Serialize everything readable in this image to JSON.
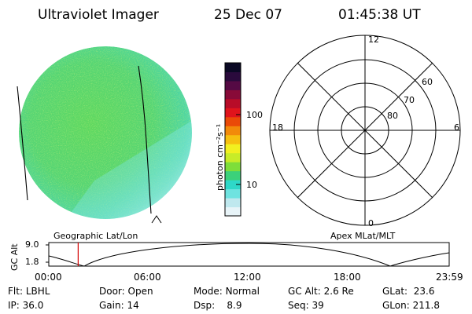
{
  "header": {
    "title": "Ultraviolet Imager",
    "date": "25 Dec 07",
    "time": "01:45:38 UT"
  },
  "colorbar": {
    "label": "photon cm⁻²s⁻¹",
    "tick_100": "100",
    "tick_10": "10",
    "colors": [
      "#e8f4f8",
      "#bfe8ee",
      "#6fe3e0",
      "#2ed8c8",
      "#3bd17a",
      "#7ede3a",
      "#c8ec28",
      "#f2f020",
      "#f6c010",
      "#f28a0a",
      "#ea4a08",
      "#e0141c",
      "#b80c28",
      "#880a38",
      "#550a44",
      "#2a0a3c",
      "#0a0824"
    ]
  },
  "polar": {
    "labels": {
      "top": "12",
      "bottom": "0",
      "left": "18",
      "right": "6"
    },
    "lat_labels": [
      "60",
      "70",
      "80"
    ]
  },
  "timeline": {
    "y_axis_label": "GC Alt",
    "y_ticks": [
      "9.0",
      "1.8"
    ],
    "left_label": "Geographic Lat/Lon",
    "right_label": "Apex  MLat/MLT",
    "x_ticks": [
      "00:00",
      "06:00",
      "12:00",
      "18:00",
      "23:59"
    ],
    "current_time_fraction": 0.0734
  },
  "info": {
    "row1": [
      {
        "key": "Flt:",
        "value": "LBHL"
      },
      {
        "key": "Door:",
        "value": "Open"
      },
      {
        "key": "Mode:",
        "value": "Normal"
      },
      {
        "key": "GC Alt:",
        "value": "2.6 Re"
      },
      {
        "key": "GLat:",
        "value": "23.6"
      }
    ],
    "row2": [
      {
        "key": "IP:",
        "value": "36.0"
      },
      {
        "key": "Gain:",
        "value": "14"
      },
      {
        "key": "Dsp:",
        "value": "8.9"
      },
      {
        "key": "Seq:",
        "value": "39"
      },
      {
        "key": "GLon:",
        "value": "211.8"
      }
    ]
  }
}
